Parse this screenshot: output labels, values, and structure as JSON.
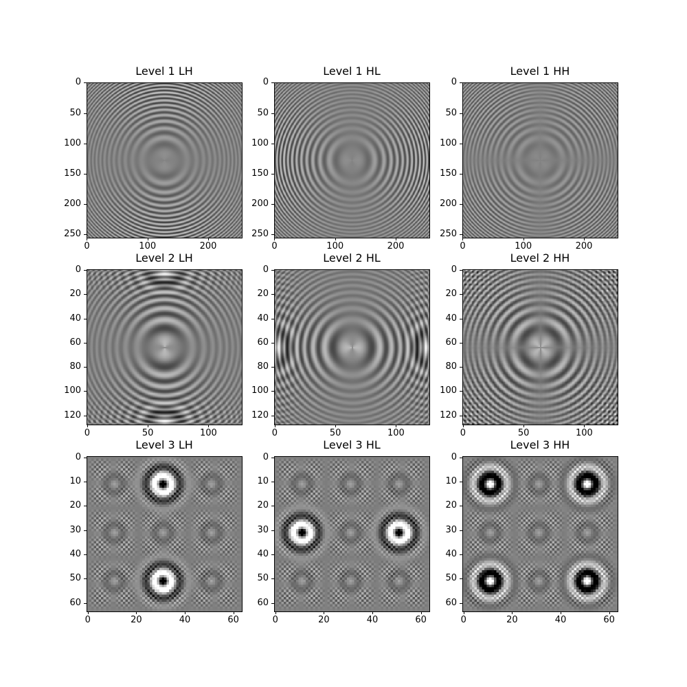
{
  "chart_data": [
    {
      "type": "heatmap",
      "title": "Level 1 LH",
      "size": 256,
      "level": 1,
      "band": "LH",
      "xticks": [
        0,
        100,
        200
      ],
      "yticks": [
        0,
        50,
        100,
        150,
        200,
        250
      ],
      "colormap": "gray"
    },
    {
      "type": "heatmap",
      "title": "Level 1 HL",
      "size": 256,
      "level": 1,
      "band": "HL",
      "xticks": [
        0,
        100,
        200
      ],
      "yticks": [
        0,
        50,
        100,
        150,
        200,
        250
      ],
      "colormap": "gray"
    },
    {
      "type": "heatmap",
      "title": "Level 1 HH",
      "size": 256,
      "level": 1,
      "band": "HH",
      "xticks": [
        0,
        100,
        200
      ],
      "yticks": [
        0,
        50,
        100,
        150,
        200,
        250
      ],
      "colormap": "gray"
    },
    {
      "type": "heatmap",
      "title": "Level 2 LH",
      "size": 128,
      "level": 2,
      "band": "LH",
      "xticks": [
        0,
        50,
        100
      ],
      "yticks": [
        0,
        20,
        40,
        60,
        80,
        100,
        120
      ],
      "colormap": "gray"
    },
    {
      "type": "heatmap",
      "title": "Level 2 HL",
      "size": 128,
      "level": 2,
      "band": "HL",
      "xticks": [
        0,
        50,
        100
      ],
      "yticks": [
        0,
        20,
        40,
        60,
        80,
        100,
        120
      ],
      "colormap": "gray"
    },
    {
      "type": "heatmap",
      "title": "Level 2 HH",
      "size": 128,
      "level": 2,
      "band": "HH",
      "xticks": [
        0,
        50,
        100
      ],
      "yticks": [
        0,
        20,
        40,
        60,
        80,
        100,
        120
      ],
      "colormap": "gray"
    },
    {
      "type": "heatmap",
      "title": "Level 3 LH",
      "size": 64,
      "level": 3,
      "band": "LH",
      "xticks": [
        0,
        20,
        40,
        60
      ],
      "yticks": [
        0,
        10,
        20,
        30,
        40,
        50,
        60
      ],
      "colormap": "gray"
    },
    {
      "type": "heatmap",
      "title": "Level 3 HL",
      "size": 64,
      "level": 3,
      "band": "HL",
      "xticks": [
        0,
        20,
        40,
        60
      ],
      "yticks": [
        0,
        10,
        20,
        30,
        40,
        50,
        60
      ],
      "colormap": "gray"
    },
    {
      "type": "heatmap",
      "title": "Level 3 HH",
      "size": 64,
      "level": 3,
      "band": "HH",
      "xticks": [
        0,
        20,
        40,
        60
      ],
      "yticks": [
        0,
        10,
        20,
        30,
        40,
        50,
        60
      ],
      "colormap": "gray"
    }
  ]
}
